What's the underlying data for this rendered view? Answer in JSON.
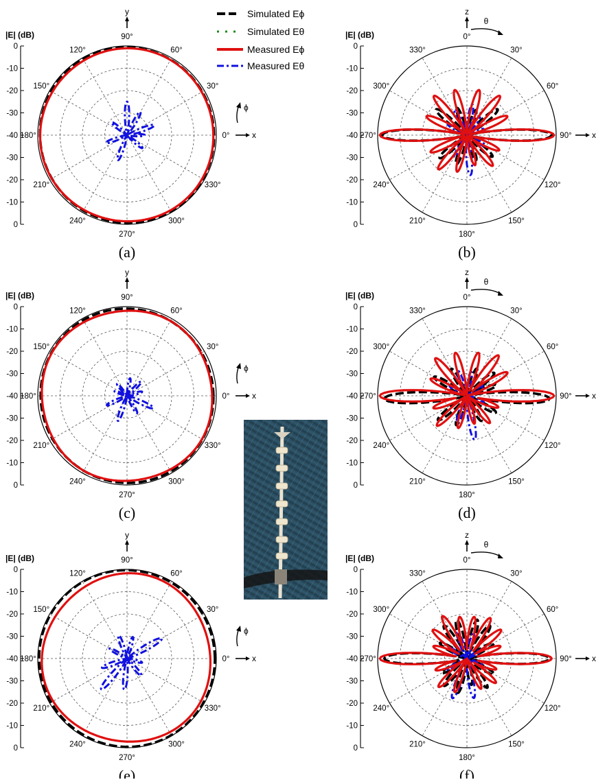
{
  "legend": [
    {
      "label": "Simulated Eϕ",
      "color": "#000000",
      "dash": "long"
    },
    {
      "label": "Simulated Eθ",
      "color": "#1a8a1a",
      "dash": "dot"
    },
    {
      "label": "Measured Eϕ",
      "color": "#e01010",
      "dash": "solid"
    },
    {
      "label": "Measured Eθ",
      "color": "#1010e0",
      "dash": "dashdot"
    }
  ],
  "photo": {
    "description_icon": "antenna-photo"
  },
  "chart_data": [
    {
      "id": "a",
      "caption": "(a)",
      "type": "polar",
      "plane": "xy",
      "ylabel": "|E| (dB)",
      "radial_ticks_top": [
        "0",
        "-10",
        "-20",
        "-30",
        "-40"
      ],
      "radial_ticks_bottom": [
        "-30",
        "-20",
        "-10",
        "0"
      ],
      "rlim": [
        -40,
        0
      ],
      "angle_labels": {
        "0": "0°",
        "30": "30°",
        "60": "60°",
        "90": "90°",
        "120": "120°",
        "150": "150°",
        "180": "180°",
        "210": "210°",
        "240": "240°",
        "270": "270°",
        "300": "300°",
        "330": "330°"
      },
      "orientation": "cartesian",
      "axis_names": {
        "up": "y",
        "right": "x",
        "rot": "ϕ"
      },
      "series": [
        {
          "name": "Simulated Eϕ",
          "kind": "omni",
          "level": -0.6,
          "ripple": 0.5,
          "k": 2
        },
        {
          "name": "Measured Eϕ",
          "kind": "omni",
          "level": -1.0,
          "ripple": 0.4,
          "k": 3
        },
        {
          "name": "Measured Eθ",
          "kind": "lobes",
          "base": -40,
          "peaks": [
            {
              "a": 90,
              "r": -25
            },
            {
              "a": 60,
              "r": -28
            },
            {
              "a": 20,
              "r": -27
            },
            {
              "a": 140,
              "r": -31
            },
            {
              "a": 200,
              "r": -30
            },
            {
              "a": 250,
              "r": -28
            },
            {
              "a": 320,
              "r": -31
            },
            {
              "a": 0,
              "r": -32
            }
          ]
        }
      ]
    },
    {
      "id": "b",
      "caption": "(b)",
      "type": "polar",
      "plane": "xz",
      "ylabel": "|E| (dB)",
      "radial_ticks_top": [
        "0",
        "-10",
        "-20",
        "-30",
        "-40"
      ],
      "radial_ticks_bottom": [
        "-30",
        "-20",
        "-10",
        "0"
      ],
      "rlim": [
        -40,
        0
      ],
      "angle_labels": {
        "0": "0°",
        "30": "30°",
        "60": "60°",
        "90": "90°",
        "120": "120°",
        "150": "150°",
        "180": "180°",
        "210": "210°",
        "240": "240°",
        "270": "270°",
        "300": "300°",
        "330": "330°"
      },
      "orientation": "compass",
      "axis_names": {
        "up": "z",
        "right": "x",
        "rot": "θ"
      },
      "series": [
        {
          "name": "Simulated Eϕ",
          "kind": "lobes",
          "base": -40,
          "peaks": [
            {
              "a": 90,
              "r": -2
            },
            {
              "a": 270,
              "r": -2
            },
            {
              "a": 20,
              "r": -28
            },
            {
              "a": 50,
              "r": -22
            },
            {
              "a": 130,
              "r": -25
            },
            {
              "a": 160,
              "r": -28
            },
            {
              "a": 200,
              "r": -26
            },
            {
              "a": 230,
              "r": -24
            },
            {
              "a": 310,
              "r": -22
            },
            {
              "a": 340,
              "r": -27
            }
          ]
        },
        {
          "name": "Measured Eϕ",
          "kind": "lobes",
          "base": -40,
          "peaks": [
            {
              "a": 90,
              "r": -1
            },
            {
              "a": 270,
              "r": -1
            },
            {
              "a": 15,
              "r": -19
            },
            {
              "a": 40,
              "r": -17
            },
            {
              "a": 65,
              "r": -20
            },
            {
              "a": 115,
              "r": -24
            },
            {
              "a": 140,
              "r": -22
            },
            {
              "a": 165,
              "r": -26
            },
            {
              "a": 195,
              "r": -23
            },
            {
              "a": 220,
              "r": -20
            },
            {
              "a": 245,
              "r": -22
            },
            {
              "a": 295,
              "r": -20
            },
            {
              "a": 320,
              "r": -17
            },
            {
              "a": 345,
              "r": -19
            }
          ]
        },
        {
          "name": "Measured Eθ",
          "kind": "lobes",
          "base": -40,
          "peaks": [
            {
              "a": 10,
              "r": -26
            },
            {
              "a": 35,
              "r": -30
            },
            {
              "a": 70,
              "r": -32
            },
            {
              "a": 120,
              "r": -30
            },
            {
              "a": 175,
              "r": -22
            },
            {
              "a": 210,
              "r": -29
            },
            {
              "a": 300,
              "r": -30
            },
            {
              "a": 335,
              "r": -27
            }
          ]
        }
      ]
    },
    {
      "id": "c",
      "caption": "(c)",
      "type": "polar",
      "plane": "xy",
      "ylabel": "|E| (dB)",
      "radial_ticks_top": [
        "0",
        "-10",
        "-20",
        "-30",
        "-40"
      ],
      "radial_ticks_bottom": [
        "-30",
        "-20",
        "-10",
        "0"
      ],
      "rlim": [
        -40,
        0
      ],
      "angle_labels": {
        "0": "0°",
        "30": "30°",
        "60": "60°",
        "90": "90°",
        "120": "120°",
        "150": "150°",
        "180": "180°",
        "210": "210°",
        "240": "240°",
        "270": "270°",
        "300": "300°",
        "330": "330°"
      },
      "orientation": "cartesian",
      "axis_names": {
        "up": "y",
        "right": "x",
        "rot": "ϕ"
      },
      "series": [
        {
          "name": "Simulated Eϕ",
          "kind": "omni",
          "level": -0.8,
          "ripple": 0.6,
          "k": 2
        },
        {
          "name": "Measured Eϕ",
          "kind": "omni",
          "level": -1.2,
          "ripple": 0.8,
          "k": 4
        },
        {
          "name": "Measured Eθ",
          "kind": "lobes",
          "base": -40,
          "peaks": [
            {
              "a": 45,
              "r": -31
            },
            {
              "a": 80,
              "r": -32
            },
            {
              "a": 130,
              "r": -33
            },
            {
              "a": 160,
              "r": -34
            },
            {
              "a": 205,
              "r": -30
            },
            {
              "a": 250,
              "r": -28
            },
            {
              "a": 300,
              "r": -31
            },
            {
              "a": 335,
              "r": -27
            },
            {
              "a": 15,
              "r": -33
            }
          ]
        }
      ]
    },
    {
      "id": "d",
      "caption": "(d)",
      "type": "polar",
      "plane": "xz",
      "ylabel": "|E| (dB)",
      "radial_ticks_top": [
        "0",
        "-10",
        "-20",
        "-30",
        "-40"
      ],
      "radial_ticks_bottom": [
        "-30",
        "-20",
        "-10",
        "0"
      ],
      "rlim": [
        -40,
        0
      ],
      "angle_labels": {
        "0": "0°",
        "30": "30°",
        "60": "60°",
        "90": "90°",
        "120": "120°",
        "150": "150°",
        "180": "180°",
        "210": "210°",
        "240": "240°",
        "270": "270°",
        "300": "300°",
        "330": "330°"
      },
      "orientation": "compass",
      "axis_names": {
        "up": "z",
        "right": "x",
        "rot": "θ"
      },
      "series": [
        {
          "name": "Simulated Eϕ",
          "kind": "lobes",
          "base": -40,
          "peaks": [
            {
              "a": 92,
              "r": -3
            },
            {
              "a": 268,
              "r": -3
            },
            {
              "a": 20,
              "r": -27
            },
            {
              "a": 50,
              "r": -24
            },
            {
              "a": 70,
              "r": -26
            },
            {
              "a": 120,
              "r": -25
            },
            {
              "a": 150,
              "r": -27
            },
            {
              "a": 200,
              "r": -26
            },
            {
              "a": 230,
              "r": -23
            },
            {
              "a": 300,
              "r": -23
            },
            {
              "a": 330,
              "r": -26
            }
          ]
        },
        {
          "name": "Measured Eϕ",
          "kind": "lobes",
          "base": -40,
          "peaks": [
            {
              "a": 90,
              "r": -1
            },
            {
              "a": 270,
              "r": -1
            },
            {
              "a": 15,
              "r": -20
            },
            {
              "a": 38,
              "r": -17
            },
            {
              "a": 60,
              "r": -19
            },
            {
              "a": 110,
              "r": -25
            },
            {
              "a": 140,
              "r": -24
            },
            {
              "a": 165,
              "r": -27
            },
            {
              "a": 195,
              "r": -25
            },
            {
              "a": 225,
              "r": -21
            },
            {
              "a": 250,
              "r": -24
            },
            {
              "a": 295,
              "r": -22
            },
            {
              "a": 320,
              "r": -18
            },
            {
              "a": 345,
              "r": -20
            }
          ]
        },
        {
          "name": "Measured Eθ",
          "kind": "lobes",
          "base": -40,
          "peaks": [
            {
              "a": 10,
              "r": -29
            },
            {
              "a": 60,
              "r": -31
            },
            {
              "a": 110,
              "r": -32
            },
            {
              "a": 170,
              "r": -20
            },
            {
              "a": 200,
              "r": -27
            },
            {
              "a": 300,
              "r": -31
            },
            {
              "a": 340,
              "r": -28
            }
          ]
        }
      ]
    },
    {
      "id": "e",
      "caption": "(e)",
      "type": "polar",
      "plane": "xy",
      "ylabel": "|E| (dB)",
      "radial_ticks_top": [
        "0",
        "-10",
        "-20",
        "-30",
        "-40"
      ],
      "radial_ticks_bottom": [
        "-30",
        "-20",
        "-10",
        "0"
      ],
      "rlim": [
        -40,
        0
      ],
      "angle_labels": {
        "0": "0°",
        "30": "30°",
        "60": "60°",
        "90": "90°",
        "120": "120°",
        "150": "150°",
        "180": "180°",
        "210": "210°",
        "240": "240°",
        "270": "270°",
        "300": "300°",
        "330": "330°"
      },
      "orientation": "cartesian",
      "axis_names": {
        "up": "y",
        "right": "x",
        "rot": "ϕ"
      },
      "series": [
        {
          "name": "Simulated Eϕ",
          "kind": "omni",
          "level": -0.3,
          "ripple": 0.4,
          "k": 2
        },
        {
          "name": "Measured Eϕ",
          "kind": "omni",
          "level": -1.6,
          "ripple": 1.3,
          "k": 3
        },
        {
          "name": "Measured Eθ",
          "kind": "lobes",
          "base": -40,
          "peaks": [
            {
              "a": 30,
              "r": -22
            },
            {
              "a": 75,
              "r": -30
            },
            {
              "a": 110,
              "r": -29
            },
            {
              "a": 150,
              "r": -31
            },
            {
              "a": 200,
              "r": -28
            },
            {
              "a": 230,
              "r": -22
            },
            {
              "a": 265,
              "r": -26
            },
            {
              "a": 310,
              "r": -30
            },
            {
              "a": 345,
              "r": -33
            }
          ]
        }
      ]
    },
    {
      "id": "f",
      "caption": "(f)",
      "type": "polar",
      "plane": "xz",
      "ylabel": "|E| (dB)",
      "radial_ticks_top": [
        "0",
        "-10",
        "-20",
        "-30",
        "-40"
      ],
      "radial_ticks_bottom": [
        "-30",
        "-20",
        "-10",
        "0"
      ],
      "rlim": [
        -40,
        0
      ],
      "angle_labels": {
        "0": "0°",
        "30": "30°",
        "60": "60°",
        "90": "90°",
        "120": "120°",
        "150": "150°",
        "180": "180°",
        "210": "210°",
        "240": "240°",
        "270": "270°",
        "300": "300°",
        "330": "330°"
      },
      "orientation": "compass",
      "axis_names": {
        "up": "z",
        "right": "x",
        "rot": "θ"
      },
      "series": [
        {
          "name": "Simulated Eϕ",
          "kind": "lobes",
          "base": -40,
          "peaks": [
            {
              "a": 90,
              "r": -3
            },
            {
              "a": 270,
              "r": -3
            },
            {
              "a": 15,
              "r": -22
            },
            {
              "a": 35,
              "r": -22
            },
            {
              "a": 60,
              "r": -26
            },
            {
              "a": 120,
              "r": -26
            },
            {
              "a": 145,
              "r": -24
            },
            {
              "a": 170,
              "r": -28
            },
            {
              "a": 195,
              "r": -24
            },
            {
              "a": 220,
              "r": -24
            },
            {
              "a": 240,
              "r": -27
            },
            {
              "a": 300,
              "r": -26
            },
            {
              "a": 325,
              "r": -22
            },
            {
              "a": 345,
              "r": -22
            }
          ]
        },
        {
          "name": "Measured Eϕ",
          "kind": "lobes",
          "base": -40,
          "peaks": [
            {
              "a": 90,
              "r": -2
            },
            {
              "a": 270,
              "r": -1
            },
            {
              "a": 10,
              "r": -21
            },
            {
              "a": 30,
              "r": -19
            },
            {
              "a": 50,
              "r": -20
            },
            {
              "a": 70,
              "r": -24
            },
            {
              "a": 110,
              "r": -26
            },
            {
              "a": 130,
              "r": -23
            },
            {
              "a": 155,
              "r": -25
            },
            {
              "a": 200,
              "r": -24
            },
            {
              "a": 225,
              "r": -22
            },
            {
              "a": 250,
              "r": -25
            },
            {
              "a": 290,
              "r": -24
            },
            {
              "a": 310,
              "r": -20
            },
            {
              "a": 330,
              "r": -18
            },
            {
              "a": 350,
              "r": -21
            }
          ]
        },
        {
          "name": "Simulated Eθ",
          "kind": "lobes",
          "base": -40,
          "peaks": [
            {
              "a": 160,
              "r": -33
            },
            {
              "a": 20,
              "r": -35
            }
          ]
        },
        {
          "name": "Measured Eθ",
          "kind": "lobes",
          "base": -40,
          "peaks": [
            {
              "a": 15,
              "r": -28
            },
            {
              "a": 60,
              "r": -31
            },
            {
              "a": 115,
              "r": -31
            },
            {
              "a": 170,
              "r": -22
            },
            {
              "a": 200,
              "r": -21
            },
            {
              "a": 240,
              "r": -30
            },
            {
              "a": 300,
              "r": -30
            },
            {
              "a": 340,
              "r": -27
            }
          ]
        }
      ]
    }
  ]
}
